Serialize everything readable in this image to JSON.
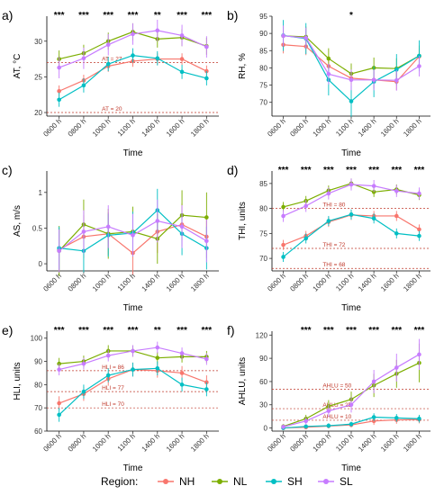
{
  "legend": {
    "title": "Region:",
    "items": [
      {
        "name": "NH",
        "color": "#F8766D"
      },
      {
        "name": "NL",
        "color": "#7CAE00"
      },
      {
        "name": "SH",
        "color": "#00BFC4"
      },
      {
        "name": "SL",
        "color": "#C77CFF"
      }
    ]
  },
  "chart_data": [
    {
      "type": "line",
      "panel": "a)",
      "xlabel": "Time",
      "ylabel": "AT, °C",
      "categories": [
        "0600 h",
        "0800 h",
        "1000 h",
        "1100 h",
        "1400 h",
        "1600 h",
        "1800 h"
      ],
      "ylim": [
        19.5,
        33.5
      ],
      "yticks": [
        20,
        25,
        30
      ],
      "series": [
        {
          "name": "NH",
          "values": [
            23.0,
            24.5,
            26.5,
            27.2,
            27.5,
            27.5,
            25.8
          ],
          "err": [
            0.8,
            0.8,
            0.8,
            0.8,
            0.8,
            0.8,
            0.8
          ]
        },
        {
          "name": "NL",
          "values": [
            27.5,
            28.3,
            30.0,
            31.3,
            30.3,
            30.5,
            29.3
          ],
          "err": [
            1.2,
            1.2,
            1.2,
            1.2,
            1.2,
            1.2,
            1.2
          ]
        },
        {
          "name": "SH",
          "values": [
            21.8,
            23.8,
            26.8,
            28.0,
            27.6,
            25.7,
            24.8
          ],
          "err": [
            1.0,
            1.0,
            1.0,
            1.0,
            1.0,
            1.0,
            1.0
          ]
        },
        {
          "name": "SL",
          "values": [
            26.3,
            27.6,
            29.5,
            31.0,
            31.5,
            30.8,
            29.2
          ],
          "err": [
            1.5,
            1.5,
            1.5,
            1.5,
            1.5,
            1.5,
            1.5
          ]
        }
      ],
      "annotations": [
        "***",
        "***",
        "***",
        "***",
        "**",
        "***",
        "***"
      ],
      "reflines": [
        {
          "label": "AT = 27",
          "y": 27
        },
        {
          "label": "AT = 20",
          "y": 20
        }
      ]
    },
    {
      "type": "line",
      "panel": "b)",
      "xlabel": "Time",
      "ylabel": "RH, %",
      "categories": [
        "0600 h",
        "0800 h",
        "1000 h",
        "1100 h",
        "1400 h",
        "1600 h",
        "1800 h"
      ],
      "ylim": [
        66,
        95
      ],
      "yticks": [
        70,
        75,
        80,
        85,
        90,
        95
      ],
      "series": [
        {
          "name": "NH",
          "values": [
            86.7,
            86.2,
            80.5,
            77.0,
            76.5,
            76.0,
            83.3
          ],
          "err": [
            2.5,
            2.5,
            2.5,
            2.5,
            2.5,
            2.5,
            2.5
          ]
        },
        {
          "name": "NL",
          "values": [
            89.3,
            89.0,
            82.7,
            78.3,
            80.0,
            79.8,
            83.5
          ],
          "err": [
            3.0,
            3.0,
            3.0,
            3.0,
            3.0,
            3.0,
            3.0
          ]
        },
        {
          "name": "SH",
          "values": [
            89.4,
            88.5,
            76.5,
            70.3,
            76.0,
            79.5,
            83.5
          ],
          "err": [
            4.5,
            4.5,
            4.5,
            4.5,
            4.5,
            4.5,
            4.5
          ]
        },
        {
          "name": "SL",
          "values": [
            89.3,
            88.7,
            78.2,
            76.5,
            76.5,
            76.4,
            80.5
          ],
          "err": [
            3.0,
            3.0,
            3.0,
            3.0,
            3.0,
            3.0,
            3.0
          ]
        }
      ],
      "annotations": [
        "",
        "",
        "",
        "*",
        "",
        "",
        ""
      ],
      "reflines": []
    },
    {
      "type": "line",
      "panel": "c)",
      "xlabel": "Time",
      "ylabel": "AS, m/s",
      "categories": [
        "0600 h",
        "0800 h",
        "1000 h",
        "1100 h",
        "1400 h",
        "1600 h",
        "1800 h"
      ],
      "ylim": [
        -0.1,
        1.3
      ],
      "yticks": [
        0.0,
        0.5,
        1.0
      ],
      "series": [
        {
          "name": "NH",
          "values": [
            0.2,
            0.38,
            0.42,
            0.15,
            0.45,
            0.55,
            0.38
          ],
          "err": [
            0.3,
            0.3,
            0.3,
            0.3,
            0.3,
            0.3,
            0.3
          ]
        },
        {
          "name": "NL",
          "values": [
            0.18,
            0.55,
            0.42,
            0.45,
            0.35,
            0.68,
            0.65
          ],
          "err": [
            0.35,
            0.35,
            0.35,
            0.35,
            0.35,
            0.35,
            0.35
          ]
        },
        {
          "name": "SH",
          "values": [
            0.22,
            0.18,
            0.4,
            0.43,
            0.75,
            0.42,
            0.22
          ],
          "err": [
            0.3,
            0.3,
            0.3,
            0.3,
            0.3,
            0.3,
            0.3
          ]
        },
        {
          "name": "SL",
          "values": [
            0.18,
            0.45,
            0.52,
            0.4,
            0.6,
            0.52,
            0.32
          ],
          "err": [
            0.3,
            0.3,
            0.3,
            0.3,
            0.3,
            0.3,
            0.3
          ]
        }
      ],
      "annotations": [],
      "reflines": []
    },
    {
      "type": "line",
      "panel": "d)",
      "xlabel": "Time",
      "ylabel": "THI, units",
      "categories": [
        "0600 h",
        "0800 h",
        "1000 h",
        "1100 h",
        "1400 h",
        "1600 h",
        "1800 h"
      ],
      "ylim": [
        67.5,
        87.5
      ],
      "yticks": [
        70,
        75,
        80,
        85
      ],
      "series": [
        {
          "name": "NH",
          "values": [
            72.7,
            74.5,
            77.3,
            78.7,
            78.5,
            78.5,
            75.8
          ],
          "err": [
            1.0,
            1.0,
            1.0,
            1.0,
            1.0,
            1.0,
            1.0
          ]
        },
        {
          "name": "NL",
          "values": [
            80.3,
            81.5,
            83.6,
            85.0,
            83.3,
            83.8,
            82.7
          ],
          "err": [
            1.0,
            1.0,
            1.0,
            1.0,
            1.0,
            1.0,
            1.0
          ]
        },
        {
          "name": "SH",
          "values": [
            70.3,
            74.0,
            77.5,
            78.8,
            78.0,
            75.0,
            74.5
          ],
          "err": [
            1.0,
            1.0,
            1.0,
            1.0,
            1.0,
            1.0,
            1.0
          ]
        },
        {
          "name": "SL",
          "values": [
            78.5,
            80.5,
            83.0,
            84.8,
            84.5,
            83.5,
            83.0
          ],
          "err": [
            1.2,
            1.2,
            1.2,
            1.2,
            1.2,
            1.2,
            1.2
          ]
        }
      ],
      "annotations": [
        "***",
        "***",
        "***",
        "***",
        "***",
        "***",
        "***"
      ],
      "reflines": [
        {
          "label": "THI = 80",
          "y": 80
        },
        {
          "label": "THI = 72",
          "y": 72
        },
        {
          "label": "THI = 68",
          "y": 68
        }
      ]
    },
    {
      "type": "line",
      "panel": "e)",
      "xlabel": "Time",
      "ylabel": "HLI, units",
      "categories": [
        "0600 h",
        "0800 h",
        "1000 h",
        "1100 h",
        "1400 h",
        "1600 h",
        "1800 h"
      ],
      "ylim": [
        60,
        103
      ],
      "yticks": [
        60,
        70,
        80,
        90,
        100
      ],
      "series": [
        {
          "name": "NH",
          "values": [
            72.0,
            76.0,
            82.5,
            86.5,
            86.0,
            85.0,
            81.0
          ],
          "err": [
            3.0,
            3.0,
            3.0,
            3.0,
            3.0,
            3.0,
            3.0
          ]
        },
        {
          "name": "NL",
          "values": [
            89.0,
            90.0,
            94.5,
            94.5,
            91.5,
            92.0,
            92.0
          ],
          "err": [
            2.5,
            2.5,
            2.5,
            2.5,
            2.5,
            2.5,
            2.5
          ]
        },
        {
          "name": "SH",
          "values": [
            67.0,
            77.0,
            84.0,
            86.5,
            87.0,
            80.0,
            78.0
          ],
          "err": [
            3.0,
            3.0,
            3.0,
            3.0,
            3.0,
            3.0,
            3.0
          ]
        },
        {
          "name": "SL",
          "values": [
            86.5,
            89.0,
            92.5,
            94.5,
            96.0,
            93.5,
            91.0
          ],
          "err": [
            2.5,
            2.5,
            2.5,
            2.5,
            2.5,
            2.5,
            2.5
          ]
        }
      ],
      "annotations": [
        "***",
        "***",
        "***",
        "***",
        "**",
        "***",
        "***"
      ],
      "reflines": [
        {
          "label": "HLI = 86",
          "y": 86
        },
        {
          "label": "HLI = 77",
          "y": 77
        },
        {
          "label": "HLI = 70",
          "y": 70
        }
      ]
    },
    {
      "type": "line",
      "panel": "f)",
      "xlabel": "Time",
      "ylabel": "AHLU, units",
      "categories": [
        "0600 h",
        "0800 h",
        "1000 h",
        "1100 h",
        "1400 h",
        "1600 h",
        "1800 h"
      ],
      "ylim": [
        -4,
        125
      ],
      "yticks": [
        0,
        30,
        60,
        90,
        120
      ],
      "series": [
        {
          "name": "NH",
          "values": [
            0.0,
            1.0,
            2.5,
            4.0,
            9.0,
            10.5,
            11.0
          ],
          "err": [
            2.0,
            2.0,
            3.0,
            3.0,
            5.0,
            5.0,
            5.0
          ]
        },
        {
          "name": "NL",
          "values": [
            2.0,
            12.0,
            28.0,
            37.0,
            55.0,
            70.0,
            84.0
          ],
          "err": [
            3.0,
            5.0,
            8.0,
            10.0,
            15.0,
            18.0,
            25.0
          ]
        },
        {
          "name": "SH",
          "values": [
            0.0,
            2.0,
            3.0,
            5.0,
            14.0,
            13.0,
            12.0
          ],
          "err": [
            2.0,
            2.0,
            3.0,
            3.0,
            5.0,
            5.0,
            5.0
          ]
        },
        {
          "name": "SL",
          "values": [
            1.5,
            9.0,
            22.0,
            30.0,
            60.0,
            78.0,
            95.0
          ],
          "err": [
            3.0,
            5.0,
            8.0,
            10.0,
            15.0,
            18.0,
            20.0
          ]
        }
      ],
      "annotations": [
        "",
        "***",
        "***",
        "***",
        "***",
        "***",
        "***"
      ],
      "reflines": [
        {
          "label": "AHLU = 50",
          "y": 50
        },
        {
          "label": "AHLU = 25",
          "y": 25
        },
        {
          "label": "AHLU = 10",
          "y": 10
        }
      ]
    }
  ]
}
